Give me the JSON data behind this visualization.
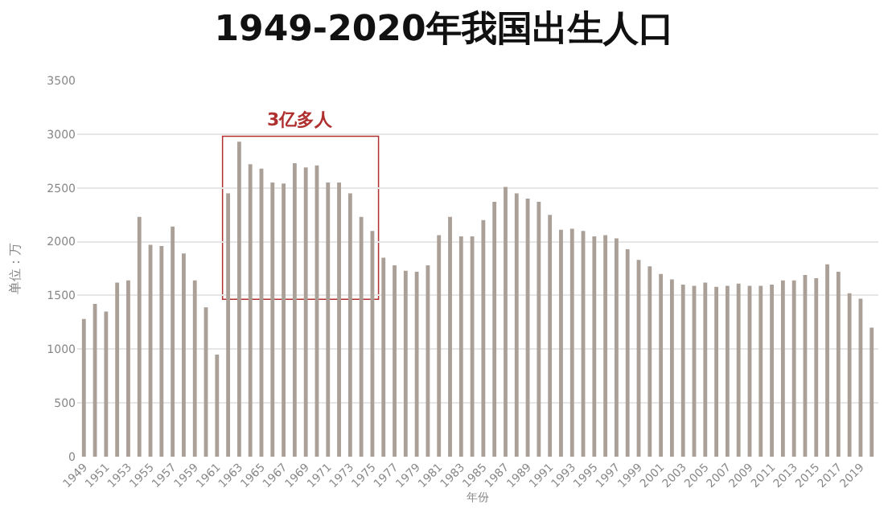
{
  "chart_data": {
    "type": "bar",
    "title": "1949-2020年我国出生人口",
    "xlabel": "年份",
    "ylabel": "单位：万",
    "x": [
      1949,
      1950,
      1951,
      1952,
      1953,
      1954,
      1955,
      1956,
      1957,
      1958,
      1959,
      1960,
      1961,
      1962,
      1963,
      1964,
      1965,
      1966,
      1967,
      1968,
      1969,
      1970,
      1971,
      1972,
      1973,
      1974,
      1975,
      1976,
      1977,
      1978,
      1979,
      1980,
      1981,
      1982,
      1983,
      1984,
      1985,
      1986,
      1987,
      1988,
      1989,
      1990,
      1991,
      1992,
      1993,
      1994,
      1995,
      1996,
      1997,
      1998,
      1999,
      2000,
      2001,
      2002,
      2003,
      2004,
      2005,
      2006,
      2007,
      2008,
      2009,
      2010,
      2011,
      2012,
      2013,
      2014,
      2015,
      2016,
      2017,
      2018,
      2019,
      2020
    ],
    "values": [
      1280,
      1420,
      1350,
      1620,
      1640,
      2230,
      1970,
      1960,
      2140,
      1890,
      1640,
      1390,
      950,
      2450,
      2930,
      2720,
      2680,
      2550,
      2540,
      2730,
      2690,
      2710,
      2550,
      2550,
      2450,
      2230,
      2100,
      1850,
      1780,
      1730,
      1720,
      1780,
      2060,
      2230,
      2050,
      2050,
      2200,
      2370,
      2510,
      2450,
      2400,
      2370,
      2250,
      2110,
      2120,
      2100,
      2050,
      2060,
      2030,
      1930,
      1830,
      1770,
      1700,
      1650,
      1600,
      1590,
      1620,
      1580,
      1590,
      1610,
      1590,
      1590,
      1600,
      1640,
      1640,
      1690,
      1660,
      1790,
      1720,
      1520,
      1470,
      1200
    ],
    "color": "#aaa098",
    "xlim": [
      1948.4,
      2020.6
    ],
    "xticks": [
      1949,
      1951,
      1953,
      1955,
      1957,
      1959,
      1961,
      1963,
      1965,
      1967,
      1969,
      1971,
      1973,
      1975,
      1977,
      1979,
      1981,
      1983,
      1985,
      1987,
      1989,
      1991,
      1993,
      1995,
      1997,
      1999,
      2001,
      2003,
      2005,
      2007,
      2009,
      2011,
      2013,
      2015,
      2017,
      2019
    ],
    "ylim": [
      0,
      3500
    ],
    "yticks": [
      0,
      500,
      1000,
      1500,
      2000,
      2500,
      3000,
      3500
    ],
    "grid": "y",
    "bands": [
      {
        "axis": "x",
        "from": 1961.55,
        "to": 1975.5,
        "label": "3亿多人",
        "color": "#b03030"
      }
    ]
  }
}
